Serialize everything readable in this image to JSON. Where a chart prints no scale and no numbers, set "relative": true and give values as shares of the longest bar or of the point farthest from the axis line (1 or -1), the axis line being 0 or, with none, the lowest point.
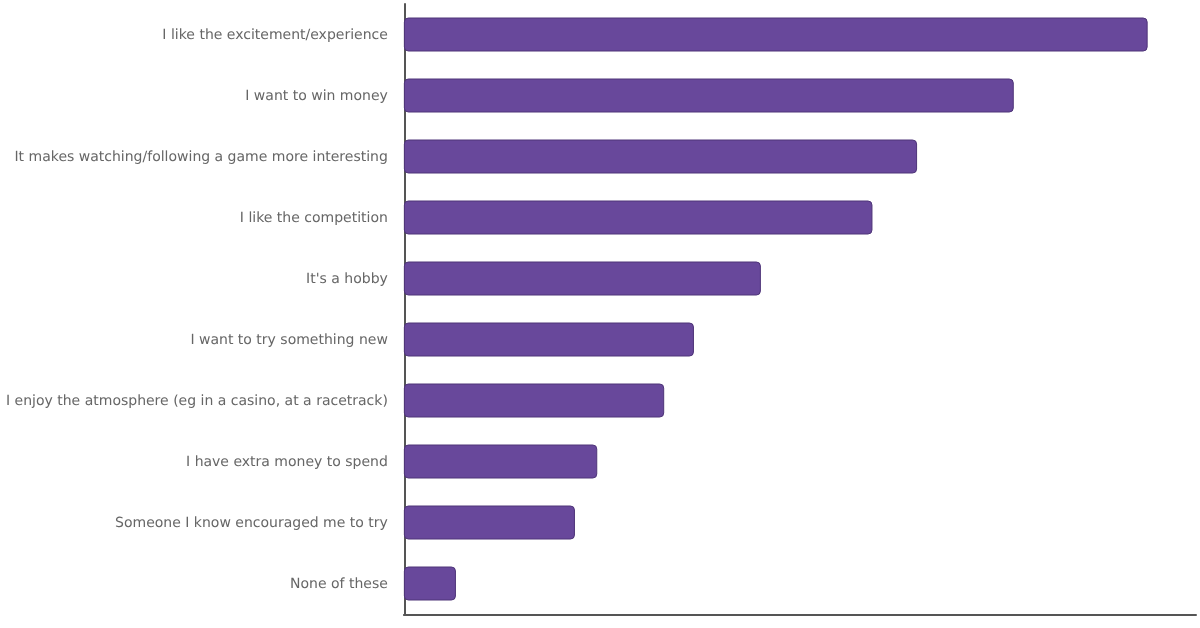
{
  "chart_data": {
    "type": "bar",
    "orientation": "horizontal",
    "relative": true,
    "categories": [
      "I like the excitement/experience",
      "I want to win money",
      "It makes watching/following a game more interesting",
      "I like the competition",
      "It's a hobby",
      "I want to try something new",
      "I enjoy the atmosphere (eg in a casino, at a racetrack)",
      "I have extra money to spend",
      "Someone I know encouraged me to try",
      "None of these"
    ],
    "values": [
      1,
      0.82,
      0.69,
      0.63,
      0.48,
      0.39,
      0.35,
      0.26,
      0.23,
      0.07
    ],
    "color": "#68489b"
  }
}
